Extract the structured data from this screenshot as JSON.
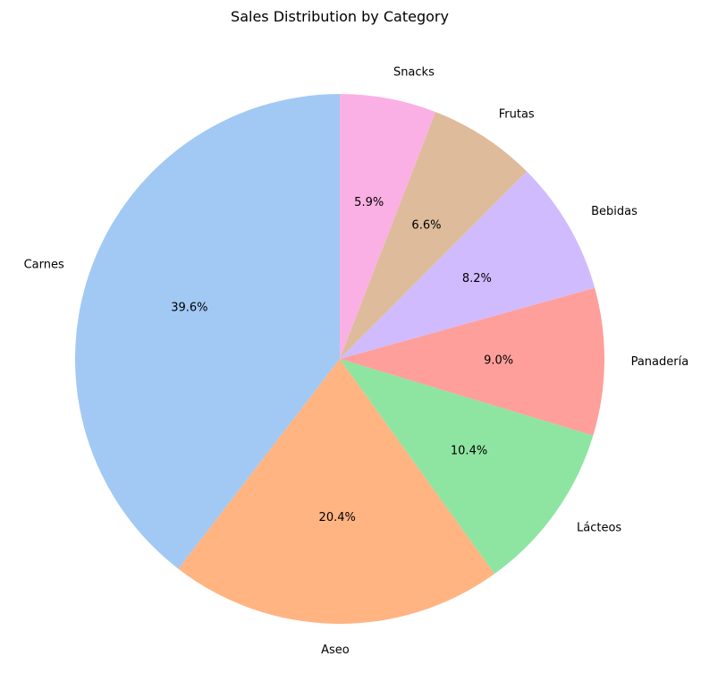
{
  "chart_data": {
    "type": "pie",
    "title": "Sales Distribution by Category",
    "start_angle_deg": 90,
    "direction": "counterclockwise",
    "slices": [
      {
        "label": "Carnes",
        "value": 39.6,
        "pct_text": "39.6%",
        "color": "#a1c9f4"
      },
      {
        "label": "Aseo",
        "value": 20.4,
        "pct_text": "20.4%",
        "color": "#ffb482"
      },
      {
        "label": "Lácteos",
        "value": 10.4,
        "pct_text": "10.4%",
        "color": "#8de5a1"
      },
      {
        "label": "Panadería",
        "value": 9.0,
        "pct_text": "9.0%",
        "color": "#ff9f9b"
      },
      {
        "label": "Bebidas",
        "value": 8.2,
        "pct_text": "8.2%",
        "color": "#d0bbff"
      },
      {
        "label": "Frutas",
        "value": 6.6,
        "pct_text": "6.6%",
        "color": "#debb9b"
      },
      {
        "label": "Snacks",
        "value": 5.9,
        "pct_text": "5.9%",
        "color": "#fab0e4"
      }
    ]
  }
}
